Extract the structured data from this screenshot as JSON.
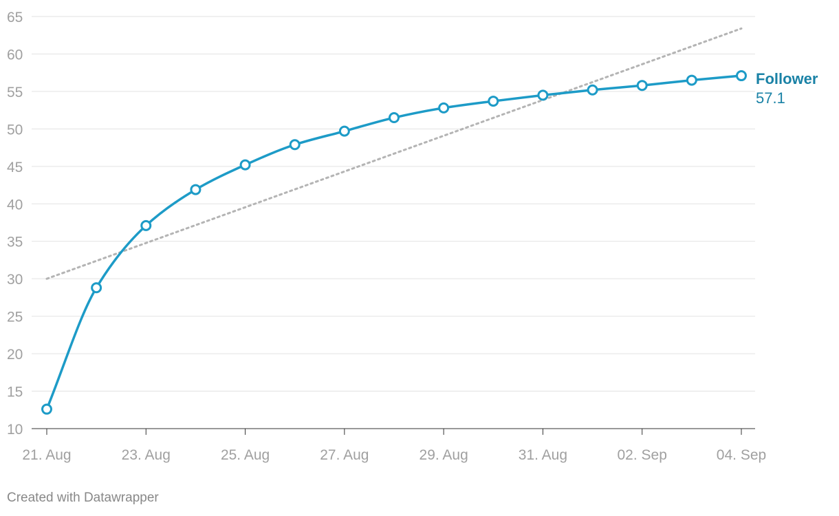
{
  "chart_data": {
    "type": "line",
    "title": "",
    "xlabel": "",
    "ylabel": "",
    "x_ticks": [
      "21. Aug",
      "23. Aug",
      "25. Aug",
      "27. Aug",
      "29. Aug",
      "31. Aug",
      "02. Sep",
      "04. Sep"
    ],
    "y_ticks": [
      "65",
      "60",
      "55",
      "50",
      "45",
      "40",
      "35",
      "30",
      "25",
      "20",
      "15",
      "10"
    ],
    "ylim": [
      10,
      65
    ],
    "xlim": [
      "2021-08-21",
      "2021-09-04"
    ],
    "grid": true,
    "series": [
      {
        "name": "Follower",
        "color": "#1d9bc7",
        "label_color": "#1a82a6",
        "end_label": "57.1",
        "points": [
          {
            "x": "2021-08-21",
            "y": 12.6
          },
          {
            "x": "2021-08-22",
            "y": 28.8
          },
          {
            "x": "2021-08-23",
            "y": 37.1
          },
          {
            "x": "2021-08-24",
            "y": 41.9
          },
          {
            "x": "2021-08-25",
            "y": 45.2
          },
          {
            "x": "2021-08-26",
            "y": 47.9
          },
          {
            "x": "2021-08-27",
            "y": 49.7
          },
          {
            "x": "2021-08-28",
            "y": 51.5
          },
          {
            "x": "2021-08-29",
            "y": 52.8
          },
          {
            "x": "2021-08-30",
            "y": 53.7
          },
          {
            "x": "2021-08-31",
            "y": 54.5
          },
          {
            "x": "2021-09-01",
            "y": 55.2
          },
          {
            "x": "2021-09-02",
            "y": 55.8
          },
          {
            "x": "2021-09-03",
            "y": 56.5
          },
          {
            "x": "2021-09-04",
            "y": 57.1
          }
        ]
      }
    ],
    "trendline": {
      "style": "dotted",
      "color": "#b4b4b4",
      "start": {
        "x": "2021-08-21",
        "y": 30.0
      },
      "end": {
        "x": "2021-09-04",
        "y": 63.4
      }
    }
  },
  "footer": {
    "credit": "Created with Datawrapper"
  }
}
